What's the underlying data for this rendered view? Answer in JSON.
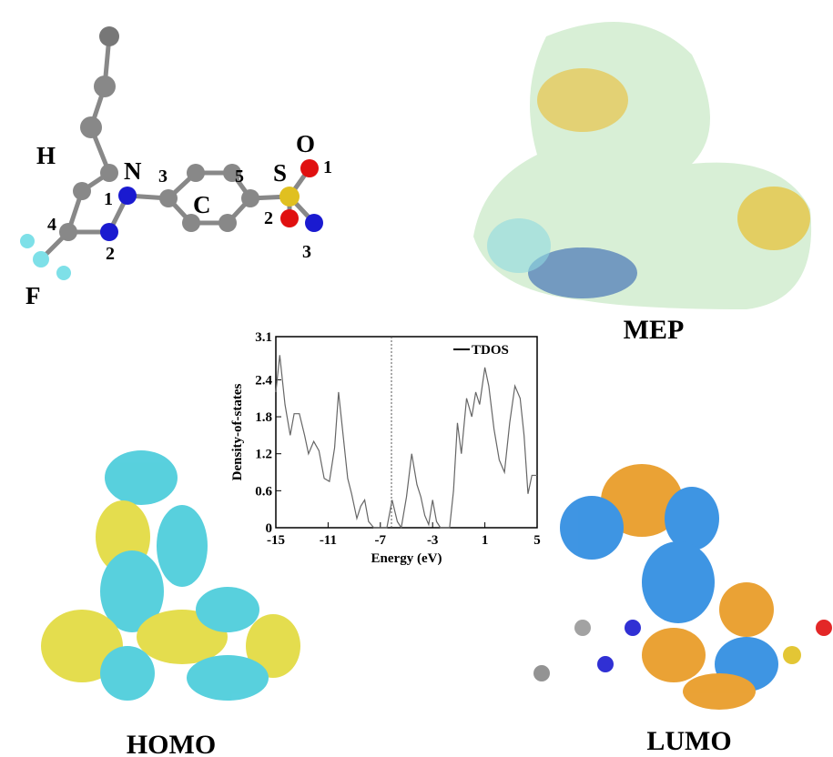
{
  "chart_data": {
    "type": "line",
    "xlabel": "Energy (eV)",
    "ylabel": "Density-of-states",
    "xlim": [
      -15,
      5
    ],
    "ylim": [
      0,
      3.1
    ],
    "xticks": [
      -15,
      -11,
      -7,
      -3,
      1,
      5
    ],
    "yticks": [
      0,
      0.6,
      1.2,
      1.8,
      2.4,
      3.1
    ],
    "reference_line_x": -6.15,
    "legend": "upper right",
    "x": [
      -15,
      -14.7,
      -14.3,
      -13.9,
      -13.6,
      -13.2,
      -12.8,
      -12.5,
      -12.1,
      -11.7,
      -11.3,
      -10.9,
      -10.5,
      -10.2,
      -9.9,
      -9.5,
      -9.2,
      -8.8,
      -8.5,
      -8.2,
      -7.9,
      -7.5,
      -6.5,
      -6.1,
      -5.7,
      -5.4,
      -5.0,
      -4.6,
      -4.2,
      -3.9,
      -3.6,
      -3.3,
      -3.0,
      -2.7,
      -2.4,
      -1.7,
      -1.4,
      -1.1,
      -0.8,
      -0.4,
      0,
      0.3,
      0.6,
      1,
      1.3,
      1.7,
      2.1,
      2.5,
      2.9,
      3.3,
      3.7,
      4.0,
      4.3,
      4.6,
      5
    ],
    "series": [
      {
        "name": "TDOS",
        "color": "#666666",
        "values": [
          2.2,
          2.8,
          2.0,
          1.5,
          1.85,
          1.85,
          1.5,
          1.2,
          1.4,
          1.25,
          0.8,
          0.75,
          1.3,
          2.2,
          1.6,
          0.8,
          0.55,
          0.15,
          0.35,
          0.45,
          0.1,
          0,
          0,
          0.45,
          0.1,
          0,
          0.5,
          1.2,
          0.7,
          0.5,
          0.2,
          0.05,
          0.45,
          0.1,
          0,
          0,
          0.6,
          1.7,
          1.2,
          2.1,
          1.8,
          2.2,
          2.0,
          2.6,
          2.3,
          1.6,
          1.1,
          0.9,
          1.7,
          2.3,
          2.1,
          1.5,
          0.55,
          0.85,
          0.85
        ]
      }
    ]
  },
  "atom_labels": [
    "H",
    "N",
    "C",
    "S",
    "O",
    "F"
  ],
  "locants": [
    "1",
    "2",
    "3",
    "4",
    "5",
    "1",
    "2",
    "3"
  ],
  "panels": [
    "MEP",
    "HOMO",
    "LUMO"
  ]
}
